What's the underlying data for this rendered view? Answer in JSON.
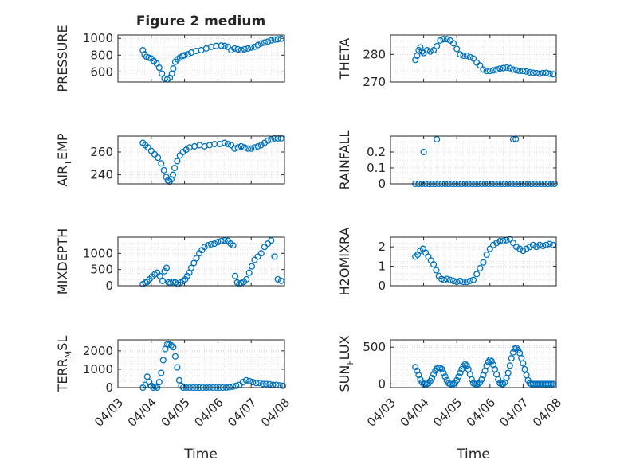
{
  "figure": {
    "title": "Figure 2 medium",
    "marker_color": "#0072BD",
    "xlabel": "Time",
    "xticks": [
      "04/03",
      "04/04",
      "04/05",
      "04/06",
      "04/07",
      "04/08"
    ]
  },
  "chart_data": [
    {
      "type": "scatter",
      "ylabel": "PRESSURE",
      "ylim": [
        480,
        1040
      ],
      "yticks": [
        "600",
        "800",
        "1000"
      ],
      "ytick_values": [
        600,
        800,
        1000
      ],
      "xlim": [
        0,
        5
      ],
      "grid": true,
      "x": [
        0.75,
        0.8,
        0.86,
        0.92,
        1.0,
        1.08,
        1.16,
        1.24,
        1.32,
        1.4,
        1.48,
        1.56,
        1.62,
        1.66,
        1.72,
        1.78,
        1.86,
        1.94,
        2.0,
        2.1,
        2.2,
        2.35,
        2.5,
        2.65,
        2.8,
        2.95,
        3.1,
        3.2,
        3.3,
        3.4,
        3.5,
        3.6,
        3.7,
        3.8,
        3.9,
        4.0,
        4.1,
        4.2,
        4.3,
        4.4,
        4.5,
        4.6,
        4.7,
        4.8,
        4.9
      ],
      "y": [
        860,
        810,
        780,
        770,
        760,
        730,
        700,
        650,
        580,
        520,
        510,
        530,
        580,
        640,
        720,
        750,
        770,
        790,
        800,
        810,
        830,
        850,
        860,
        880,
        900,
        910,
        915,
        910,
        900,
        860,
        880,
        870,
        860,
        870,
        880,
        890,
        900,
        920,
        940,
        950,
        960,
        975,
        985,
        990,
        995
      ]
    },
    {
      "type": "scatter",
      "ylabel": "THETA",
      "ylim": [
        270,
        287
      ],
      "yticks": [
        "270",
        "280"
      ],
      "ytick_values": [
        270,
        280
      ],
      "xlim": [
        0,
        5
      ],
      "grid": true,
      "x": [
        0.75,
        0.8,
        0.85,
        0.9,
        0.95,
        1.0,
        1.1,
        1.2,
        1.3,
        1.4,
        1.5,
        1.6,
        1.7,
        1.8,
        1.9,
        2.0,
        2.1,
        2.2,
        2.3,
        2.4,
        2.5,
        2.6,
        2.7,
        2.8,
        2.9,
        3.0,
        3.1,
        3.2,
        3.3,
        3.4,
        3.5,
        3.6,
        3.7,
        3.8,
        3.9,
        4.0,
        4.1,
        4.2,
        4.3,
        4.4,
        4.5,
        4.6,
        4.7,
        4.8,
        4.9
      ],
      "y": [
        278,
        279.5,
        281.5,
        282.5,
        281,
        280.5,
        281.5,
        281,
        281.5,
        283,
        285,
        285.5,
        285.5,
        285,
        284,
        282,
        280,
        279.5,
        279.5,
        279,
        278.5,
        277,
        276,
        274.5,
        274,
        274,
        274.2,
        274.5,
        274.8,
        275,
        275.2,
        275,
        274.5,
        274.2,
        274,
        274,
        273.8,
        273.5,
        273.3,
        273.2,
        273,
        273.2,
        273.3,
        273,
        272.8
      ]
    },
    {
      "type": "scatter",
      "ylabel": "AIR_TEMP",
      "ylim": [
        232,
        274
      ],
      "yticks": [
        "240",
        "260"
      ],
      "ytick_values": [
        240,
        260
      ],
      "xlim": [
        0,
        5
      ],
      "grid": true,
      "x": [
        0.75,
        0.82,
        0.9,
        1.0,
        1.1,
        1.2,
        1.3,
        1.38,
        1.45,
        1.5,
        1.55,
        1.6,
        1.65,
        1.7,
        1.78,
        1.86,
        1.95,
        2.05,
        2.15,
        2.3,
        2.45,
        2.6,
        2.75,
        2.9,
        3.05,
        3.2,
        3.3,
        3.4,
        3.5,
        3.6,
        3.7,
        3.8,
        3.9,
        4.0,
        4.1,
        4.2,
        4.3,
        4.4,
        4.5,
        4.6,
        4.7,
        4.8,
        4.9
      ],
      "y": [
        268,
        266,
        264,
        261,
        258,
        255,
        250,
        244,
        238,
        235,
        234,
        236,
        240,
        246,
        252,
        257,
        260,
        262,
        264,
        265,
        266,
        265,
        266,
        267,
        267,
        268,
        267,
        266,
        263,
        264,
        265,
        264,
        263,
        263,
        264,
        265,
        266,
        268,
        270,
        271,
        272,
        272,
        272
      ]
    },
    {
      "type": "scatter",
      "ylabel": "RAINFALL",
      "ylim": [
        0,
        0.3
      ],
      "yticks": [
        "0",
        "0.1",
        "0.2"
      ],
      "ytick_values": [
        0,
        0.1,
        0.2
      ],
      "xlim": [
        0,
        5
      ],
      "grid": true,
      "x": [
        0.75,
        0.85,
        0.95,
        1.0,
        1.05,
        1.15,
        1.25,
        1.35,
        1.45,
        1.55,
        1.65,
        1.75,
        1.85,
        1.95,
        2.05,
        2.15,
        2.25,
        2.35,
        2.45,
        2.55,
        2.65,
        2.75,
        2.85,
        2.95,
        3.05,
        3.15,
        3.25,
        3.35,
        3.45,
        3.55,
        3.65,
        3.75,
        3.85,
        3.95,
        4.05,
        4.15,
        4.25,
        4.35,
        4.45,
        4.55,
        4.65,
        4.75,
        4.85,
        4.95,
        1.4,
        3.7,
        3.78
      ],
      "y": [
        0,
        0,
        0,
        0.2,
        0,
        0,
        0,
        0,
        0,
        0,
        0,
        0,
        0,
        0,
        0,
        0,
        0,
        0,
        0,
        0,
        0,
        0,
        0,
        0,
        0,
        0,
        0,
        0,
        0,
        0,
        0,
        0,
        0,
        0,
        0,
        0,
        0,
        0,
        0,
        0,
        0,
        0,
        0,
        0,
        0.28,
        0.28,
        0.28
      ]
    },
    {
      "type": "scatter",
      "ylabel": "MIXDEPTH",
      "ylim": [
        0,
        1500
      ],
      "yticks": [
        "0",
        "500",
        "1000"
      ],
      "ytick_values": [
        0,
        500,
        1000
      ],
      "xlim": [
        0,
        5
      ],
      "grid": true,
      "x": [
        0.75,
        0.82,
        0.88,
        0.95,
        1.02,
        1.1,
        1.18,
        1.26,
        1.34,
        1.4,
        1.46,
        1.52,
        1.58,
        1.65,
        1.72,
        1.8,
        1.88,
        1.96,
        2.02,
        2.08,
        2.14,
        2.2,
        2.28,
        2.36,
        2.44,
        2.52,
        2.6,
        2.7,
        2.8,
        2.9,
        3.0,
        3.1,
        3.2,
        3.3,
        3.38,
        3.46,
        3.52,
        3.58,
        3.64,
        3.7,
        3.78,
        3.86,
        3.94,
        4.02,
        4.1,
        4.2,
        4.3,
        4.4,
        4.5,
        4.6,
        4.7,
        4.8,
        4.9
      ],
      "y": [
        50,
        100,
        120,
        200,
        280,
        350,
        400,
        300,
        150,
        450,
        550,
        100,
        80,
        120,
        100,
        50,
        100,
        150,
        200,
        300,
        400,
        550,
        700,
        850,
        1000,
        1100,
        1200,
        1250,
        1280,
        1300,
        1350,
        1380,
        1400,
        1390,
        1300,
        1250,
        300,
        100,
        50,
        80,
        120,
        200,
        400,
        600,
        800,
        900,
        1000,
        1200,
        1300,
        1400,
        900,
        200,
        150
      ]
    },
    {
      "type": "scatter",
      "ylabel": "H2OMIXRA",
      "ylim": [
        0,
        2.5
      ],
      "yticks": [
        "0",
        "1",
        "2"
      ],
      "ytick_values": [
        0,
        1,
        2
      ],
      "xlim": [
        0,
        5
      ],
      "grid": true,
      "x": [
        0.75,
        0.82,
        0.9,
        0.98,
        1.06,
        1.14,
        1.22,
        1.3,
        1.38,
        1.46,
        1.54,
        1.62,
        1.7,
        1.8,
        1.9,
        2.0,
        2.1,
        2.2,
        2.3,
        2.4,
        2.5,
        2.6,
        2.7,
        2.8,
        2.9,
        3.0,
        3.1,
        3.2,
        3.3,
        3.4,
        3.5,
        3.6,
        3.7,
        3.8,
        3.9,
        4.0,
        4.1,
        4.2,
        4.3,
        4.4,
        4.5,
        4.6,
        4.7,
        4.8,
        4.9
      ],
      "y": [
        1.5,
        1.6,
        1.8,
        1.9,
        1.7,
        1.5,
        1.3,
        1.1,
        0.8,
        0.5,
        0.35,
        0.3,
        0.35,
        0.3,
        0.25,
        0.2,
        0.25,
        0.2,
        0.2,
        0.25,
        0.3,
        0.6,
        0.9,
        1.2,
        1.6,
        1.9,
        2.1,
        2.2,
        2.3,
        2.3,
        2.35,
        2.4,
        2.2,
        2.0,
        1.9,
        1.8,
        1.9,
        2.0,
        2.1,
        2.0,
        2.1,
        2.05,
        2.1,
        2.15,
        2.1
      ]
    },
    {
      "type": "scatter",
      "ylabel": "TERR_MSL",
      "ylim": [
        0,
        2600
      ],
      "yticks": [
        "0",
        "1000",
        "2000"
      ],
      "ytick_values": [
        0,
        1000,
        2000
      ],
      "xlim": [
        0,
        5
      ],
      "grid": true,
      "x": [
        0.75,
        0.82,
        0.88,
        0.94,
        1.0,
        1.06,
        1.12,
        1.18,
        1.24,
        1.3,
        1.36,
        1.42,
        1.48,
        1.54,
        1.6,
        1.66,
        1.72,
        1.78,
        1.84,
        1.9,
        1.96,
        2.05,
        2.15,
        2.25,
        2.35,
        2.45,
        2.55,
        2.65,
        2.75,
        2.85,
        2.95,
        3.05,
        3.15,
        3.25,
        3.35,
        3.45,
        3.55,
        3.65,
        3.75,
        3.85,
        3.95,
        4.05,
        4.15,
        4.25,
        4.35,
        4.45,
        4.55,
        4.65,
        4.75,
        4.85,
        4.95
      ],
      "y": [
        0,
        150,
        600,
        300,
        100,
        0,
        50,
        0,
        300,
        800,
        1500,
        2100,
        2350,
        2350,
        2300,
        2200,
        1700,
        1100,
        400,
        100,
        0,
        0,
        0,
        0,
        0,
        0,
        0,
        0,
        0,
        0,
        0,
        0,
        0,
        0,
        20,
        50,
        100,
        150,
        300,
        400,
        350,
        300,
        250,
        250,
        200,
        200,
        180,
        150,
        150,
        120,
        100
      ]
    },
    {
      "type": "scatter",
      "ylabel": "SUN_FLUX",
      "ylim": [
        -50,
        600
      ],
      "yticks": [
        "0",
        "500"
      ],
      "ytick_values": [
        0,
        500
      ],
      "xlim": [
        0,
        5
      ],
      "grid": true,
      "x": [
        0.75,
        0.8,
        0.85,
        0.9,
        0.95,
        1.0,
        1.05,
        1.1,
        1.15,
        1.2,
        1.25,
        1.3,
        1.35,
        1.4,
        1.45,
        1.5,
        1.55,
        1.6,
        1.65,
        1.7,
        1.75,
        1.8,
        1.85,
        1.9,
        1.95,
        2.0,
        2.05,
        2.1,
        2.15,
        2.2,
        2.25,
        2.3,
        2.35,
        2.4,
        2.45,
        2.5,
        2.55,
        2.6,
        2.65,
        2.7,
        2.75,
        2.8,
        2.85,
        2.9,
        2.95,
        3.0,
        3.05,
        3.1,
        3.15,
        3.2,
        3.25,
        3.3,
        3.35,
        3.4,
        3.45,
        3.5,
        3.55,
        3.6,
        3.65,
        3.7,
        3.75,
        3.8,
        3.85,
        3.9,
        3.95,
        4.0,
        4.05,
        4.1,
        4.15,
        4.2,
        4.25,
        4.3,
        4.35,
        4.4,
        4.45,
        4.5,
        4.55,
        4.6,
        4.65,
        4.7,
        4.75,
        4.8,
        4.85,
        4.9
      ],
      "y": [
        230,
        180,
        120,
        60,
        20,
        0,
        0,
        0,
        10,
        40,
        80,
        130,
        180,
        210,
        220,
        220,
        200,
        150,
        100,
        50,
        10,
        0,
        0,
        0,
        10,
        50,
        100,
        150,
        200,
        240,
        270,
        250,
        200,
        130,
        60,
        10,
        0,
        0,
        0,
        20,
        60,
        120,
        180,
        250,
        300,
        330,
        310,
        260,
        200,
        130,
        60,
        10,
        0,
        0,
        20,
        80,
        150,
        250,
        350,
        430,
        480,
        490,
        460,
        420,
        350,
        280,
        200,
        120,
        50,
        10,
        0,
        0,
        0,
        0,
        0,
        0,
        0,
        0,
        0,
        0,
        0,
        0,
        0,
        0
      ]
    }
  ]
}
